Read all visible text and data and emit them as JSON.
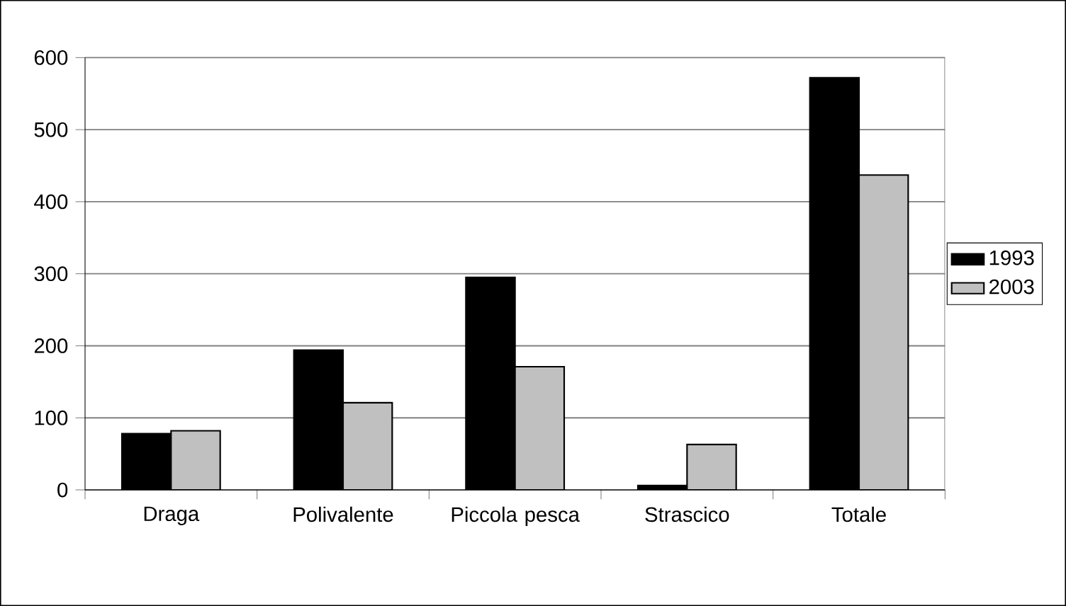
{
  "chart_data": {
    "type": "bar",
    "categories": [
      "Draga",
      "Polivalente",
      "Piccola pesca",
      "Strascico",
      "Totale"
    ],
    "series": [
      {
        "name": "1993",
        "color": "#000000",
        "values": [
          78,
          194,
          295,
          6,
          572
        ]
      },
      {
        "name": "2003",
        "color": "#c0c0c0",
        "values": [
          82,
          121,
          171,
          63,
          437
        ]
      }
    ],
    "ylim": [
      0,
      600
    ],
    "yticks": [
      0,
      100,
      200,
      300,
      400,
      500,
      600
    ],
    "grid": "y",
    "legend": "right"
  }
}
